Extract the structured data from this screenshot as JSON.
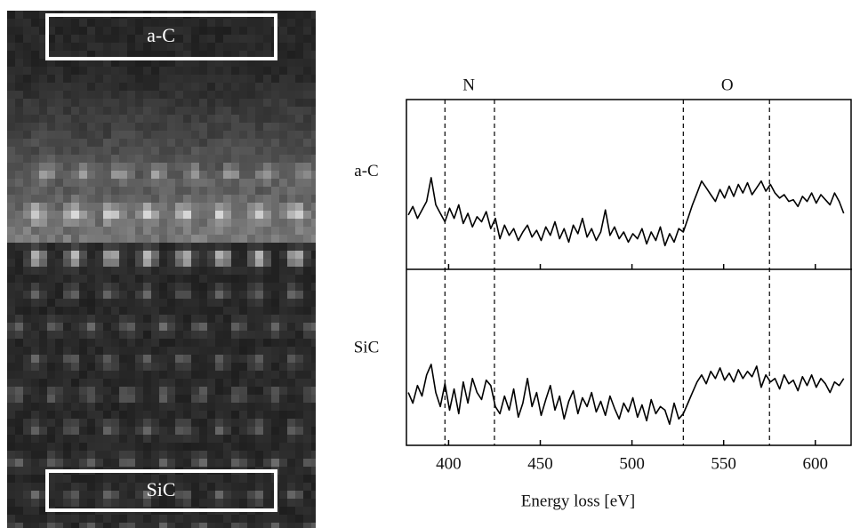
{
  "image": {
    "labels": [
      "a-C",
      "SiC"
    ]
  },
  "chart_data": {
    "type": "line",
    "x_label": "Energy loss [eV]",
    "x": [
      378,
      380.5,
      383,
      385.5,
      388,
      390.5,
      393,
      395.5,
      398,
      400.5,
      403,
      405.5,
      408,
      410.5,
      413,
      415.5,
      418,
      420.5,
      423,
      425.5,
      428,
      430.5,
      433,
      435.5,
      438,
      440.5,
      443,
      445.5,
      448,
      450.5,
      453,
      455.5,
      458,
      460.5,
      463,
      465.5,
      468,
      470.5,
      473,
      475.5,
      478,
      480.5,
      483,
      485.5,
      488,
      490.5,
      493,
      495.5,
      498,
      500.5,
      503,
      505.5,
      508,
      510.5,
      513,
      515.5,
      518,
      520.5,
      523,
      525.5,
      528,
      530.5,
      533,
      535.5,
      538,
      540.5,
      543,
      545.5,
      548,
      550.5,
      553,
      555.5,
      558,
      560.5,
      563,
      565.5,
      568,
      570.5,
      573,
      575.5,
      578,
      580.5,
      583,
      585.5,
      588,
      590.5,
      593,
      595.5,
      598,
      600.5,
      603,
      605.5,
      608,
      610.5,
      613,
      615.5
    ],
    "series": [
      {
        "name": "a-C",
        "color": "#000000",
        "values": [
          32,
          37,
          30,
          35,
          40,
          54,
          38,
          33,
          28,
          36,
          30,
          38,
          27,
          33,
          25,
          31,
          28,
          34,
          24,
          30,
          18,
          26,
          20,
          24,
          17,
          22,
          26,
          19,
          23,
          17,
          25,
          20,
          28,
          18,
          24,
          16,
          26,
          21,
          30,
          19,
          24,
          17,
          22,
          35,
          20,
          25,
          18,
          22,
          16,
          21,
          18,
          24,
          15,
          22,
          17,
          25,
          14,
          21,
          16,
          24,
          22,
          30,
          38,
          45,
          52,
          48,
          44,
          40,
          47,
          42,
          49,
          43,
          50,
          45,
          51,
          44,
          48,
          52,
          46,
          50,
          45,
          42,
          44,
          40,
          41,
          37,
          43,
          40,
          45,
          39,
          44,
          41,
          38,
          45,
          40,
          33
        ]
      },
      {
        "name": "SiC",
        "color": "#000000",
        "values": [
          30,
          24,
          34,
          28,
          40,
          46,
          30,
          22,
          35,
          20,
          32,
          18,
          36,
          24,
          38,
          30,
          26,
          37,
          34,
          22,
          18,
          28,
          20,
          32,
          16,
          24,
          38,
          22,
          30,
          17,
          26,
          34,
          20,
          28,
          15,
          25,
          31,
          18,
          27,
          22,
          30,
          19,
          25,
          17,
          28,
          21,
          15,
          24,
          19,
          27,
          16,
          23,
          14,
          26,
          18,
          22,
          20,
          12,
          24,
          15,
          18,
          24,
          30,
          36,
          40,
          35,
          42,
          38,
          44,
          37,
          41,
          36,
          43,
          38,
          42,
          39,
          45,
          33,
          40,
          36,
          38,
          32,
          40,
          35,
          37,
          31,
          39,
          34,
          40,
          33,
          38,
          35,
          30,
          36,
          34,
          38
        ]
      }
    ],
    "xlim": [
      377,
      620
    ],
    "xticks": [
      400,
      450,
      500,
      550,
      600
    ],
    "ylim": [
      0,
      100
    ],
    "vlines": [
      398,
      425,
      528,
      575
    ],
    "annotations": [
      {
        "text": "N",
        "x": 411
      },
      {
        "text": "O",
        "x": 552
      }
    ]
  }
}
